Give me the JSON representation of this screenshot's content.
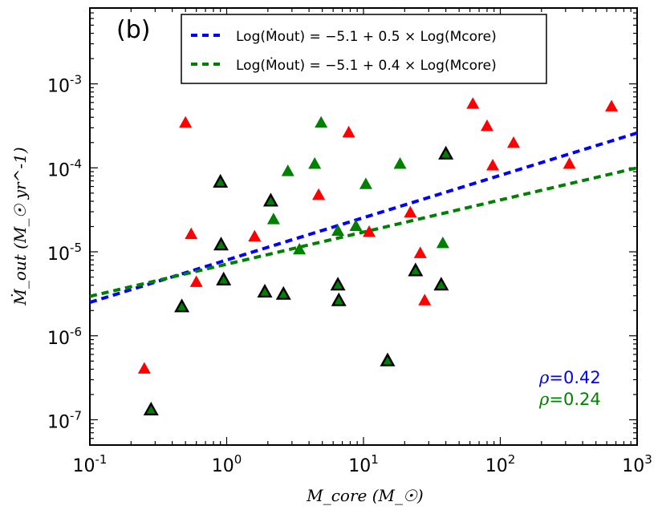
{
  "chart_data": {
    "type": "scatter",
    "panel_label": "(b)",
    "x_scale": "log",
    "y_scale": "log",
    "xlim": [
      0.1,
      1000
    ],
    "ylim": [
      5e-08,
      0.008
    ],
    "xlabel": "M_core (M_☉)",
    "ylabel": "Ṁ_out (M_☉ yr^-1)",
    "x_ticks": [
      {
        "value": 0.1,
        "base": "10",
        "exp": "-1"
      },
      {
        "value": 1,
        "base": "10",
        "exp": "0"
      },
      {
        "value": 10,
        "base": "10",
        "exp": "1"
      },
      {
        "value": 100,
        "base": "10",
        "exp": "2"
      },
      {
        "value": 1000,
        "base": "10",
        "exp": "3"
      }
    ],
    "y_ticks": [
      {
        "value": 1e-07,
        "base": "10",
        "exp": "-7"
      },
      {
        "value": 1e-06,
        "base": "10",
        "exp": "-6"
      },
      {
        "value": 1e-05,
        "base": "10",
        "exp": "-5"
      },
      {
        "value": 0.0001,
        "base": "10",
        "exp": "-4"
      },
      {
        "value": 0.001,
        "base": "10",
        "exp": "-3"
      }
    ],
    "series": [
      {
        "name": "red",
        "color": "#ff0000",
        "outlined": false,
        "points": [
          [
            0.25,
            4e-07
          ],
          [
            0.5,
            0.00034
          ],
          [
            0.55,
            1.6e-05
          ],
          [
            0.6,
            4.3e-06
          ],
          [
            1.6,
            1.5e-05
          ],
          [
            4.7,
            4.7e-05
          ],
          [
            7.8,
            0.00026
          ],
          [
            11,
            1.7e-05
          ],
          [
            22,
            2.9e-05
          ],
          [
            26,
            9.5e-06
          ],
          [
            28,
            2.6e-06
          ],
          [
            63,
            0.00057
          ],
          [
            80,
            0.00031
          ],
          [
            88,
            0.000105
          ],
          [
            125,
            0.000195
          ],
          [
            320,
            0.00011
          ],
          [
            650,
            0.00053
          ]
        ]
      },
      {
        "name": "green",
        "color": "#008000",
        "outlined": false,
        "points": [
          [
            2.2,
            2.4e-05
          ],
          [
            2.8,
            9e-05
          ],
          [
            3.4,
            1.05e-05
          ],
          [
            4.4,
            0.00011
          ],
          [
            4.9,
            0.00034
          ],
          [
            6.5,
            1.75e-05
          ],
          [
            8.8,
            2e-05
          ],
          [
            10.4,
            6.3e-05
          ],
          [
            18.5,
            0.00011
          ],
          [
            38,
            1.25e-05
          ]
        ]
      },
      {
        "name": "green-outlined",
        "color": "#008000",
        "outlined": true,
        "points": [
          [
            0.28,
            1.3e-07
          ],
          [
            0.47,
            2.2e-06
          ],
          [
            0.9,
            6.7e-05
          ],
          [
            0.91,
            1.2e-05
          ],
          [
            0.95,
            4.6e-06
          ],
          [
            1.9,
            3.3e-06
          ],
          [
            2.1,
            4e-05
          ],
          [
            2.6,
            3.1e-06
          ],
          [
            6.5,
            4e-06
          ],
          [
            6.6,
            2.6e-06
          ],
          [
            15,
            5e-07
          ],
          [
            24,
            5.9e-06
          ],
          [
            37,
            4e-06
          ],
          [
            40,
            0.000145
          ]
        ]
      }
    ],
    "fit_lines": [
      {
        "label": "Log(Ṁout) = −5.1 + 0.5 × Log(Mcore)",
        "color": "#0000ff",
        "x": [
          0.1,
          1000
        ],
        "y": [
          2.5e-06,
          0.00026
        ]
      },
      {
        "label": "Log(Ṁout) = −5.1 + 0.4 × Log(Mcore)",
        "color": "#008000",
        "x": [
          0.1,
          1000
        ],
        "y": [
          2.95e-06,
          0.0001
        ]
      }
    ],
    "correlations": [
      {
        "symbol": "ρ",
        "value": "=0.42",
        "color": "#0000ff"
      },
      {
        "symbol": "ρ",
        "value": "=0.24",
        "color": "#008000"
      }
    ],
    "legend_location": "top-center"
  }
}
